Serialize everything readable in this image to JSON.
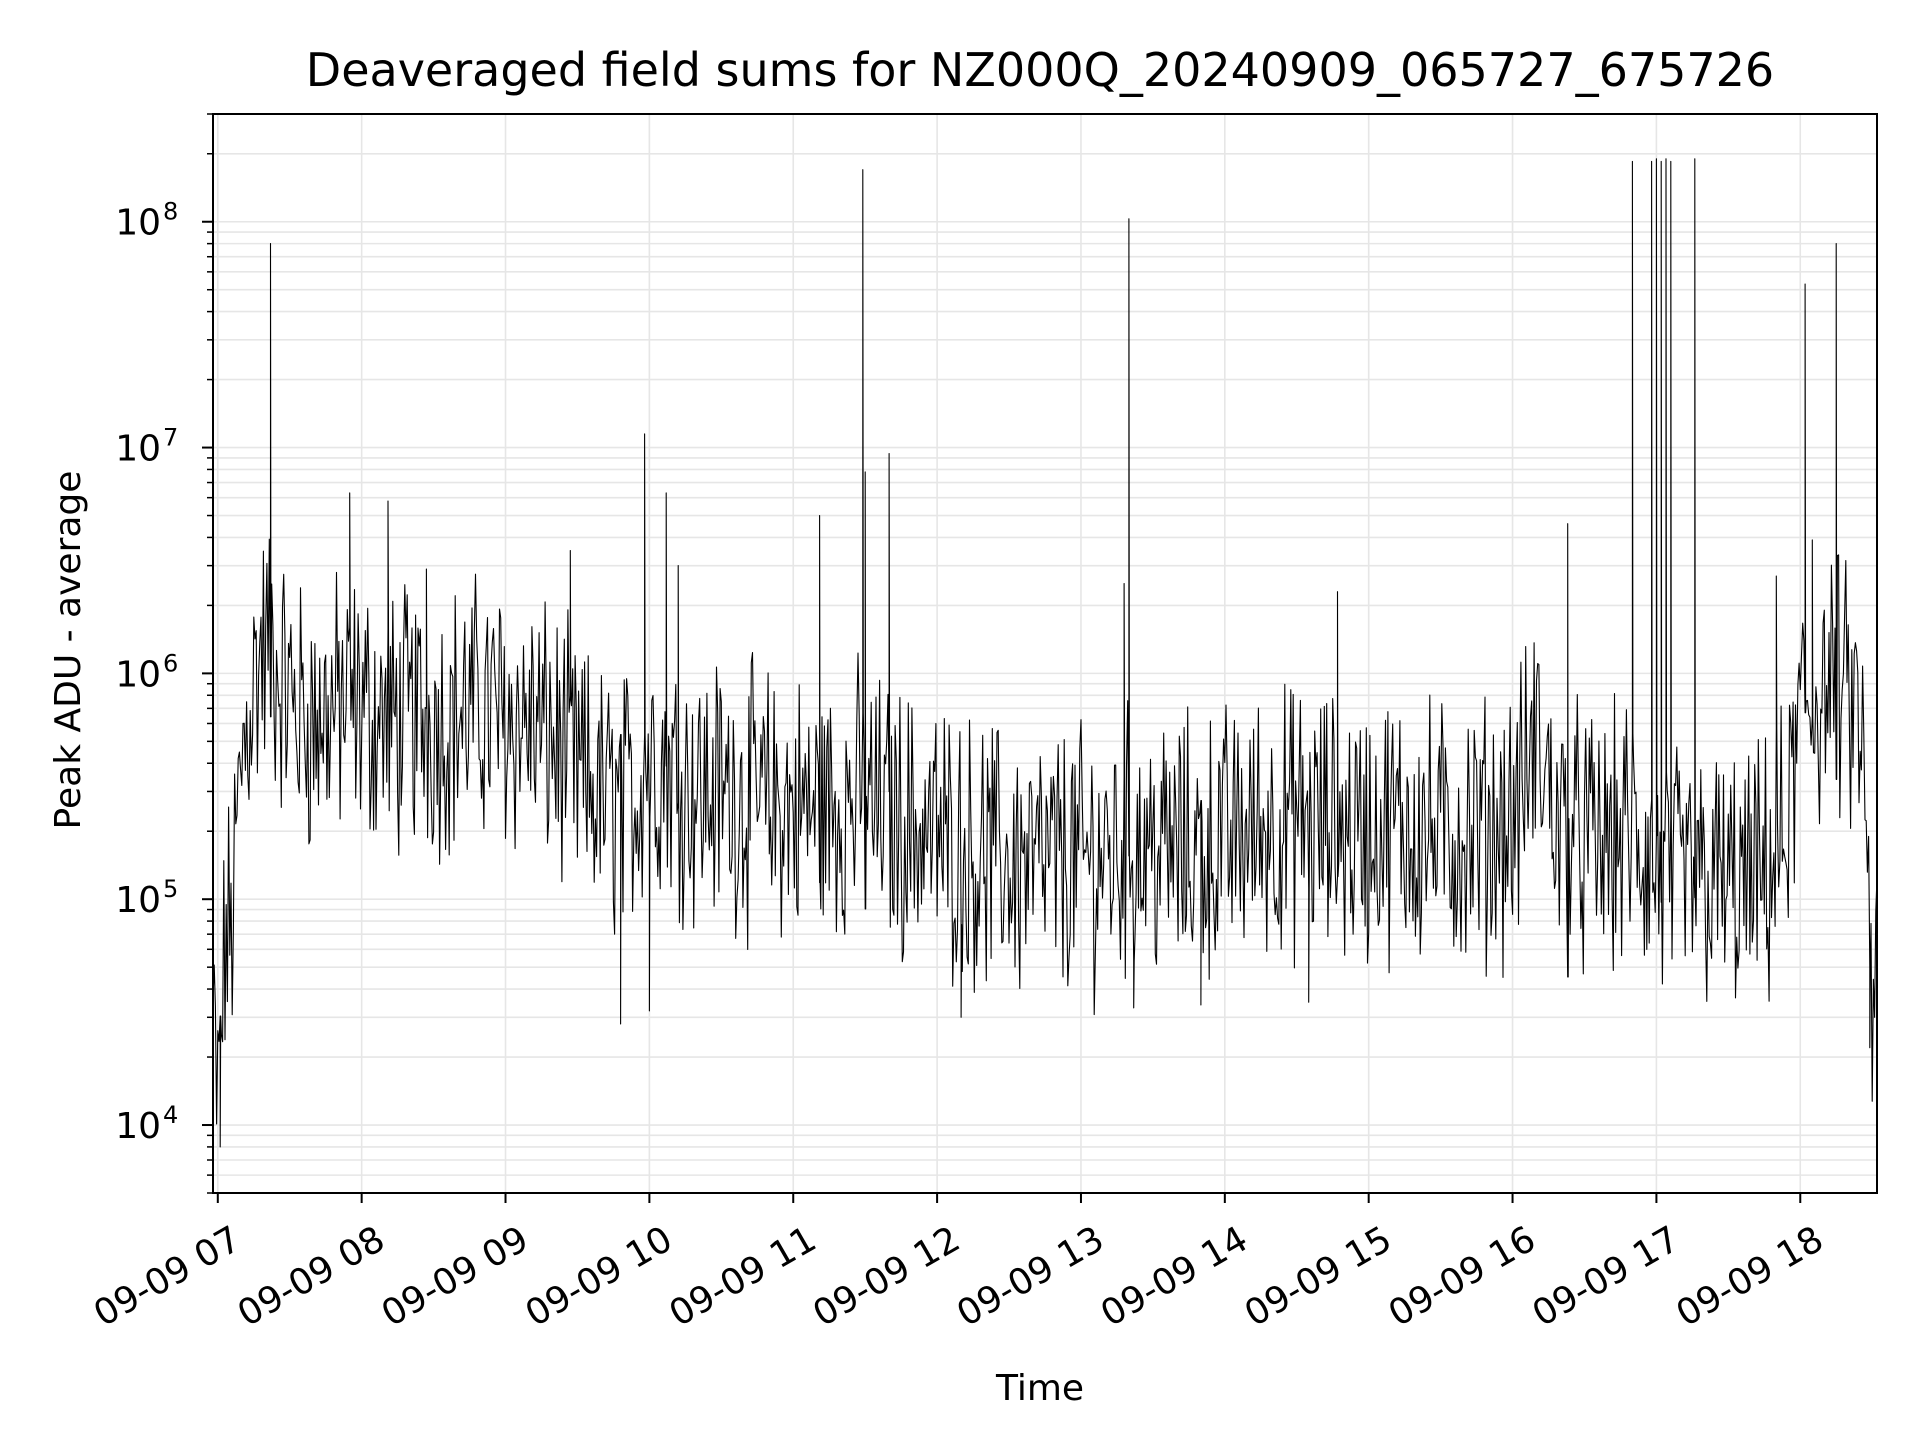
{
  "chart_data": {
    "type": "line",
    "title": "Deaveraged field sums for NZ000Q_20240909_065727_675726",
    "xlabel": "Time",
    "ylabel": "Peak ADU - average",
    "yscale": "log",
    "ylim": [
      5000,
      300000000
    ],
    "xlim": [
      "2024-09-09 06:58",
      "2024-09-09 18:32"
    ],
    "grid": true,
    "legend": "none",
    "line_color": "#000000",
    "x_ticks": [
      "09-09 07",
      "09-09 08",
      "09-09 09",
      "09-09 10",
      "09-09 11",
      "09-09 12",
      "09-09 13",
      "09-09 14",
      "09-09 15",
      "09-09 16",
      "09-09 17",
      "09-09 18"
    ],
    "y_ticks": [
      {
        "value": 10000,
        "base": "10",
        "exp": "4"
      },
      {
        "value": 100000,
        "base": "10",
        "exp": "5"
      },
      {
        "value": 1000000,
        "base": "10",
        "exp": "6"
      },
      {
        "value": 10000000,
        "base": "10",
        "exp": "7"
      },
      {
        "value": 100000000,
        "base": "10",
        "exp": "8"
      }
    ],
    "series": [
      {
        "x": [
          "2024-09-09 06:58",
          "2024-09-09 07:00",
          "2024-09-09 07:03",
          "2024-09-09 07:06",
          "2024-09-09 07:09",
          "2024-09-09 07:12",
          "2024-09-09 07:15",
          "2024-09-09 07:18",
          "2024-09-09 07:21",
          "2024-09-09 07:24",
          "2024-09-09 07:27",
          "2024-09-09 07:30",
          "2024-09-09 07:33",
          "2024-09-09 07:36",
          "2024-09-09 07:40",
          "2024-09-09 07:45",
          "2024-09-09 07:50",
          "2024-09-09 07:55",
          "2024-09-09 08:00",
          "2024-09-09 08:05",
          "2024-09-09 08:10",
          "2024-09-09 08:15",
          "2024-09-09 08:20",
          "2024-09-09 08:30",
          "2024-09-09 08:40",
          "2024-09-09 08:50",
          "2024-09-09 09:00",
          "2024-09-09 09:10",
          "2024-09-09 09:20",
          "2024-09-09 09:30",
          "2024-09-09 09:40",
          "2024-09-09 09:48",
          "2024-09-09 09:55",
          "2024-09-09 09:58",
          "2024-09-09 10:05",
          "2024-09-09 10:12",
          "2024-09-09 10:20",
          "2024-09-09 10:30",
          "2024-09-09 10:40",
          "2024-09-09 10:50",
          "2024-09-09 11:00",
          "2024-09-09 11:10",
          "2024-09-09 11:20",
          "2024-09-09 11:28",
          "2024-09-09 11:35",
          "2024-09-09 11:45",
          "2024-09-09 11:55",
          "2024-09-09 12:05",
          "2024-09-09 12:15",
          "2024-09-09 12:25",
          "2024-09-09 12:35",
          "2024-09-09 12:45",
          "2024-09-09 12:55",
          "2024-09-09 13:05",
          "2024-09-09 13:15",
          "2024-09-09 13:20",
          "2024-09-09 13:30",
          "2024-09-09 13:40",
          "2024-09-09 13:50",
          "2024-09-09 14:00",
          "2024-09-09 14:10",
          "2024-09-09 14:20",
          "2024-09-09 14:30",
          "2024-09-09 14:40",
          "2024-09-09 14:50",
          "2024-09-09 15:00",
          "2024-09-09 15:10",
          "2024-09-09 15:20",
          "2024-09-09 15:30",
          "2024-09-09 15:40",
          "2024-09-09 15:50",
          "2024-09-09 16:00",
          "2024-09-09 16:10",
          "2024-09-09 16:20",
          "2024-09-09 16:30",
          "2024-09-09 16:40",
          "2024-09-09 16:50",
          "2024-09-09 16:55",
          "2024-09-09 17:00",
          "2024-09-09 17:05",
          "2024-09-09 17:15",
          "2024-09-09 17:25",
          "2024-09-09 17:35",
          "2024-09-09 17:45",
          "2024-09-09 17:55",
          "2024-09-09 18:00",
          "2024-09-09 18:08",
          "2024-09-09 18:15",
          "2024-09-09 18:20",
          "2024-09-09 18:25",
          "2024-09-09 18:28",
          "2024-09-09 18:30",
          "2024-09-09 18:32"
        ],
        "y": [
          30000,
          12000,
          60000,
          80000,
          300000,
          600000,
          900000,
          1200000,
          1300000,
          1100000,
          900000,
          800000,
          700000,
          650000,
          600000,
          650000,
          700000,
          750000,
          700000,
          650000,
          600000,
          600000,
          650000,
          600000,
          650000,
          700000,
          650000,
          600000,
          500000,
          350000,
          280000,
          250000,
          300000,
          450000,
          400000,
          350000,
          300000,
          300000,
          280000,
          260000,
          250000,
          250000,
          260000,
          280000,
          250000,
          220000,
          200000,
          180000,
          160000,
          150000,
          140000,
          140000,
          150000,
          150000,
          160000,
          180000,
          170000,
          160000,
          170000,
          180000,
          200000,
          220000,
          220000,
          210000,
          200000,
          200000,
          210000,
          200000,
          190000,
          190000,
          200000,
          220000,
          500000,
          200000,
          180000,
          170000,
          200000,
          150000,
          130000,
          120000,
          120000,
          120000,
          110000,
          120000,
          200000,
          650000,
          800000,
          900000,
          700000,
          600000,
          150000,
          35000,
          40000
        ],
        "spikes": [
          {
            "x": "2024-09-09 07:22",
            "y": 80000000
          },
          {
            "x": "2024-09-09 07:55",
            "y": 6300000
          },
          {
            "x": "2024-09-09 08:11",
            "y": 5800000
          },
          {
            "x": "2024-09-09 08:27",
            "y": 2900000
          },
          {
            "x": "2024-09-09 09:27",
            "y": 3500000
          },
          {
            "x": "2024-09-09 09:58",
            "y": 11500000
          },
          {
            "x": "2024-09-09 10:07",
            "y": 6300000
          },
          {
            "x": "2024-09-09 10:12",
            "y": 3000000
          },
          {
            "x": "2024-09-09 11:11",
            "y": 5000000
          },
          {
            "x": "2024-09-09 11:29",
            "y": 170000000
          },
          {
            "x": "2024-09-09 11:30",
            "y": 7800000
          },
          {
            "x": "2024-09-09 11:40",
            "y": 9400000
          },
          {
            "x": "2024-09-09 13:18",
            "y": 2500000
          },
          {
            "x": "2024-09-09 13:20",
            "y": 103000000
          },
          {
            "x": "2024-09-09 14:47",
            "y": 2300000
          },
          {
            "x": "2024-09-09 16:23",
            "y": 4600000
          },
          {
            "x": "2024-09-09 16:50",
            "y": 185000000
          },
          {
            "x": "2024-09-09 16:58",
            "y": 185000000
          },
          {
            "x": "2024-09-09 17:00",
            "y": 190000000
          },
          {
            "x": "2024-09-09 17:02",
            "y": 185000000
          },
          {
            "x": "2024-09-09 17:04",
            "y": 190000000
          },
          {
            "x": "2024-09-09 17:06",
            "y": 185000000
          },
          {
            "x": "2024-09-09 17:16",
            "y": 190000000
          },
          {
            "x": "2024-09-09 17:50",
            "y": 2700000
          },
          {
            "x": "2024-09-09 18:02",
            "y": 53000000
          },
          {
            "x": "2024-09-09 18:05",
            "y": 3900000
          },
          {
            "x": "2024-09-09 18:15",
            "y": 80000000
          }
        ],
        "dips": [
          {
            "x": "2024-09-09 07:01",
            "y": 8000
          },
          {
            "x": "2024-09-09 09:48",
            "y": 28000
          },
          {
            "x": "2024-09-09 10:00",
            "y": 32000
          },
          {
            "x": "2024-09-09 12:10",
            "y": 30000
          },
          {
            "x": "2024-09-09 13:22",
            "y": 33000
          },
          {
            "x": "2024-09-09 13:50",
            "y": 34000
          },
          {
            "x": "2024-09-09 14:35",
            "y": 35000
          },
          {
            "x": "2024-09-09 18:29",
            "y": 22000
          }
        ]
      }
    ]
  }
}
